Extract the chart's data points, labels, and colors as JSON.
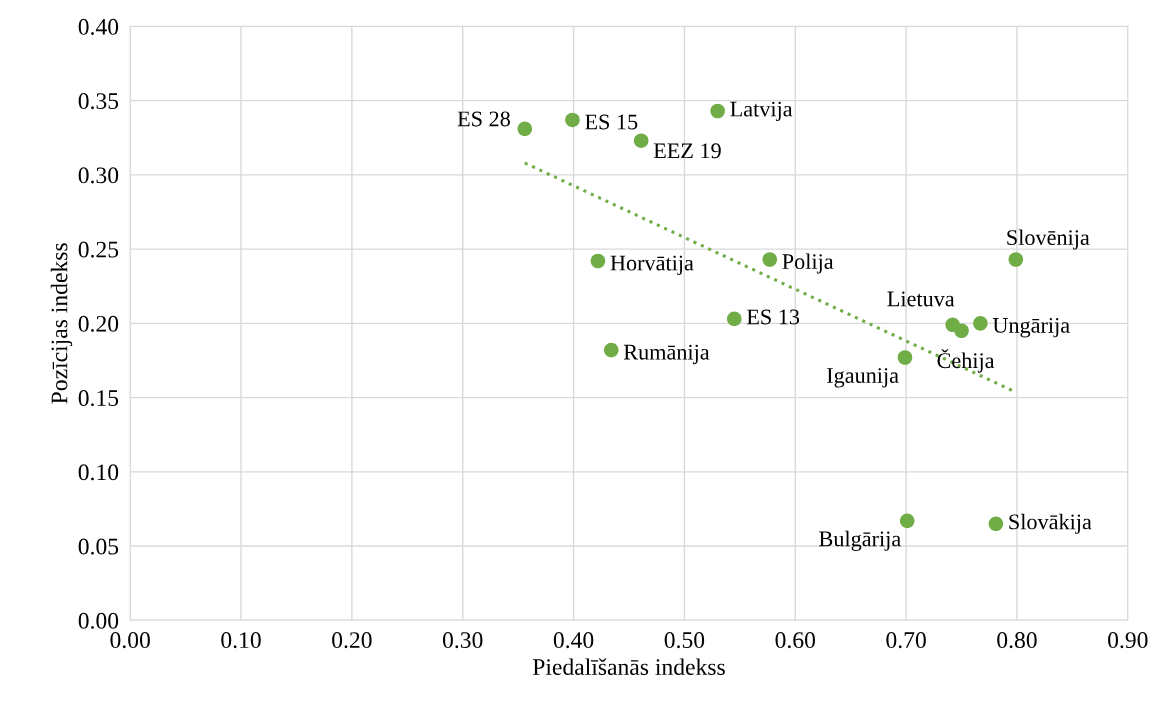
{
  "chart_data": {
    "type": "scatter",
    "xlabel": "Piedalīšanās indekss",
    "ylabel": "Pozīcijas indekss",
    "xlim": [
      0,
      0.9
    ],
    "xticks": [
      {
        "value": 0,
        "label": "0.00"
      },
      {
        "value": 0.1,
        "label": "0.10"
      },
      {
        "value": 0.2,
        "label": "0.20"
      },
      {
        "value": 0.3,
        "label": "0.30"
      },
      {
        "value": 0.4,
        "label": "0.40"
      },
      {
        "value": 0.5,
        "label": "0.50"
      },
      {
        "value": 0.6,
        "label": "0.60"
      },
      {
        "value": 0.7,
        "label": "0.70"
      },
      {
        "value": 0.8,
        "label": "0.80"
      },
      {
        "value": 0.9,
        "label": "0.90"
      }
    ],
    "ylim": [
      0,
      0.4
    ],
    "yticks": [
      {
        "value": 0,
        "label": "0.00"
      },
      {
        "value": 0.05,
        "label": "0.05"
      },
      {
        "value": 0.1,
        "label": "0.10"
      },
      {
        "value": 0.15,
        "label": "0.15"
      },
      {
        "value": 0.2,
        "label": "0.20"
      },
      {
        "value": 0.25,
        "label": "0.25"
      },
      {
        "value": 0.3,
        "label": "0.30"
      },
      {
        "value": 0.35,
        "label": "0.35"
      },
      {
        "value": 0.4,
        "label": "0.40"
      }
    ],
    "grid": true,
    "marker": "circle",
    "series": [
      {
        "color": "#70ad47",
        "x": [
          0.356,
          0.399,
          0.461,
          0.53,
          0.422,
          0.577,
          0.545,
          0.434,
          0.699,
          0.742,
          0.75,
          0.767,
          0.799,
          0.701,
          0.781
        ],
        "values": [
          0.331,
          0.337,
          0.323,
          0.343,
          0.242,
          0.243,
          0.203,
          0.182,
          0.177,
          0.199,
          0.195,
          0.2,
          0.243,
          0.067,
          0.065
        ]
      },
      {
        "type": "line",
        "line_style": "dotted",
        "marker": "none",
        "color": "#70ad47",
        "x": [
          0.356,
          0.798
        ],
        "values": [
          0.308,
          0.154
        ]
      }
    ],
    "annotations": [
      {
        "text": "ES 28",
        "x": 0.356,
        "y": 0.331
      },
      {
        "text": "ES 15",
        "x": 0.399,
        "y": 0.337
      },
      {
        "text": "EEZ 19",
        "x": 0.461,
        "y": 0.323
      },
      {
        "text": "Latvija",
        "x": 0.53,
        "y": 0.343
      },
      {
        "text": "Horvātija",
        "x": 0.422,
        "y": 0.242
      },
      {
        "text": "Polija",
        "x": 0.577,
        "y": 0.243
      },
      {
        "text": "ES 13",
        "x": 0.545,
        "y": 0.203
      },
      {
        "text": "Rumānija",
        "x": 0.434,
        "y": 0.182
      },
      {
        "text": "Igaunija",
        "x": 0.699,
        "y": 0.177
      },
      {
        "text": "Lietuva",
        "x": 0.742,
        "y": 0.199
      },
      {
        "text": "Čehija",
        "x": 0.75,
        "y": 0.195
      },
      {
        "text": "Ungārija",
        "x": 0.767,
        "y": 0.2
      },
      {
        "text": "Slovēnija",
        "x": 0.799,
        "y": 0.243
      },
      {
        "text": "Bulgārija",
        "x": 0.701,
        "y": 0.067
      },
      {
        "text": "Slovākija",
        "x": 0.781,
        "y": 0.065
      }
    ]
  }
}
